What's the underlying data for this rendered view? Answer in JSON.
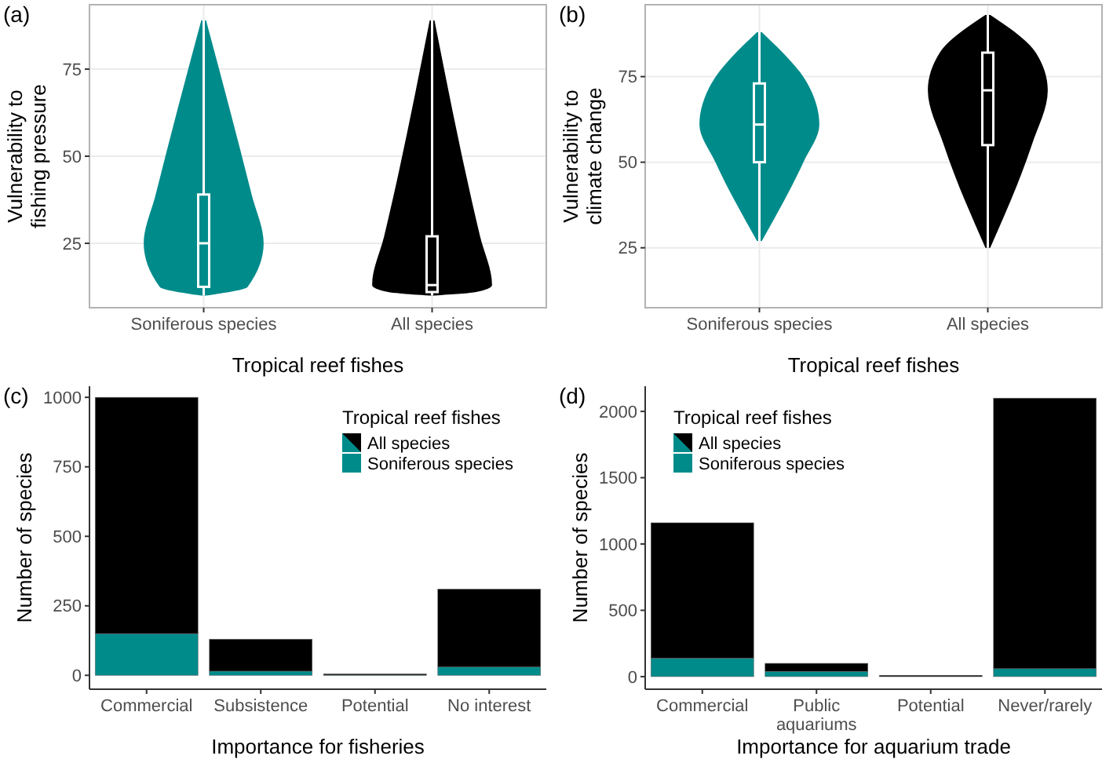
{
  "chart_data": [
    {
      "type": "box",
      "title": "(a)",
      "xlabel": "Tropical reef fishes",
      "ylabel": "Vulnerability to\nfishing pressure",
      "categories": [
        "Soniferous species",
        "All species"
      ],
      "colors": [
        "#008b8b",
        "#000000"
      ],
      "boxes": [
        {
          "low": 10,
          "q1": 12.5,
          "median": 25,
          "q3": 39,
          "high": 89
        },
        {
          "low": 10,
          "q1": 11,
          "median": 13,
          "q3": 27,
          "high": 89
        }
      ],
      "ylim": [
        6.5,
        93.5
      ],
      "yticks": [
        25,
        50,
        75
      ],
      "grid": true
    },
    {
      "type": "box",
      "title": "(b)",
      "xlabel": "Tropical reef fishes",
      "ylabel": "Vulnerability to\nclimate change",
      "categories": [
        "Soniferous species",
        "All species"
      ],
      "colors": [
        "#008b8b",
        "#000000"
      ],
      "boxes": [
        {
          "low": 27,
          "q1": 50,
          "median": 61,
          "q3": 73,
          "high": 88
        },
        {
          "low": 25,
          "q1": 55,
          "median": 71,
          "q3": 82,
          "high": 93
        }
      ],
      "ylim": [
        7.5,
        96
      ],
      "yticks": [
        25,
        50,
        75
      ],
      "grid": true
    },
    {
      "type": "bar",
      "title": "(c)",
      "xlabel": "Importance for fisheries",
      "ylabel": "Number of species",
      "legend_title": "Tropical reef fishes",
      "categories": [
        "Commercial",
        "Subsistence",
        "Potential",
        "No interest"
      ],
      "stacked": true,
      "series": [
        {
          "name": "Soniferous species",
          "color": "#008b8b",
          "values": [
            150,
            15,
            1,
            30
          ]
        },
        {
          "name": "All species",
          "color": "#000000",
          "values": [
            850,
            115,
            4,
            280
          ]
        }
      ],
      "ylim": [
        -50,
        1040
      ],
      "yticks": [
        0,
        250,
        500,
        750,
        1000
      ],
      "grid": false,
      "legend": "top right"
    },
    {
      "type": "bar",
      "title": "(d)",
      "xlabel": "Importance for aquarium trade",
      "ylabel": "Number of species",
      "legend_title": "Tropical reef fishes",
      "categories": [
        "Commercial",
        "Public aquariums",
        "Potential",
        "Never/rarely"
      ],
      "stacked": true,
      "series": [
        {
          "name": "Soniferous species",
          "color": "#008b8b",
          "values": [
            140,
            40,
            0,
            60
          ]
        },
        {
          "name": "All species",
          "color": "#000000",
          "values": [
            1020,
            60,
            10,
            2040
          ]
        }
      ],
      "ylim": [
        -95,
        2190
      ],
      "yticks": [
        0,
        500,
        1000,
        1500,
        2000
      ],
      "grid": false,
      "legend": "top left"
    }
  ]
}
